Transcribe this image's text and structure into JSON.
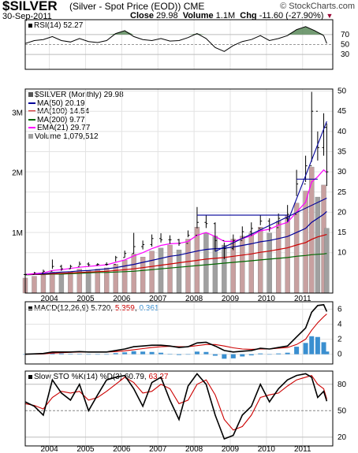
{
  "header": {
    "symbol": "$SILVER",
    "description": "(Silver - Spot Price (EOD))",
    "exchange": "CME",
    "brand": "© StockCharts.com",
    "date": "30-Sep-2011",
    "close_label": "Close",
    "close_value": "29.98",
    "volume_label": "Volume",
    "volume_value": "1.1M",
    "chg_label": "Chg",
    "chg_value": "-11.60 (-27.90%)",
    "chg_arrow": "▼"
  },
  "colors": {
    "price": "#000000",
    "ma50": "#000099",
    "ma100": "#cc0000",
    "ma200": "#006600",
    "ema21": "#ff00ff",
    "volume_up": "#c8a0a0",
    "volume_down": "#a0a0a0",
    "macd_hist": "#3a8fd0",
    "rsi_fill": "#5a8a5a"
  },
  "chart_data": [
    {
      "type": "line",
      "panel": "rsi",
      "label": "RSI(14) 52.27",
      "ylim": [
        0,
        100
      ],
      "y_ticks": [
        70,
        50,
        30
      ],
      "reference_lines": [
        70,
        30
      ],
      "x": [
        "2003-05",
        "2003-08",
        "2003-11",
        "2004-02",
        "2004-05",
        "2004-08",
        "2004-11",
        "2005-02",
        "2005-05",
        "2005-08",
        "2005-11",
        "2006-02",
        "2006-05",
        "2006-08",
        "2006-11",
        "2007-02",
        "2007-05",
        "2007-08",
        "2007-11",
        "2008-02",
        "2008-05",
        "2008-08",
        "2008-11",
        "2009-02",
        "2009-05",
        "2009-08",
        "2009-11",
        "2010-02",
        "2010-05",
        "2010-08",
        "2010-11",
        "2011-02",
        "2011-05",
        "2011-08",
        "2011-09"
      ],
      "values": [
        52,
        58,
        60,
        66,
        58,
        55,
        62,
        56,
        54,
        58,
        72,
        78,
        66,
        60,
        58,
        62,
        57,
        58,
        64,
        72,
        62,
        44,
        36,
        48,
        56,
        60,
        68,
        58,
        62,
        68,
        80,
        86,
        78,
        68,
        52
      ]
    },
    {
      "type": "candlestick",
      "panel": "price",
      "label": "$SILVER (Monthly) 29.98",
      "ylim": [
        0,
        50
      ],
      "y_ticks": [
        10,
        15,
        20,
        25,
        30,
        35,
        40,
        45,
        50
      ],
      "x_ticks": [
        "2004",
        "2005",
        "2006",
        "2007",
        "2008",
        "2009",
        "2010",
        "2011"
      ],
      "legend": [
        {
          "name": "MA(50) 20.19",
          "color": "#000099"
        },
        {
          "name": "MA(100) 14.54",
          "color": "#cc0000"
        },
        {
          "name": "MA(200) 9.77",
          "color": "#006600"
        },
        {
          "name": "EMA(21) 29.77",
          "color": "#ff00ff"
        },
        {
          "name": "Volume 1,079,512",
          "color": "#a0a0a0"
        }
      ],
      "x": [
        "2003-05",
        "2003-08",
        "2003-11",
        "2004-02",
        "2004-05",
        "2004-08",
        "2004-11",
        "2005-02",
        "2005-05",
        "2005-08",
        "2005-11",
        "2006-02",
        "2006-05",
        "2006-08",
        "2006-11",
        "2007-02",
        "2007-05",
        "2007-08",
        "2007-11",
        "2008-02",
        "2008-05",
        "2008-08",
        "2008-11",
        "2009-02",
        "2009-05",
        "2009-08",
        "2009-11",
        "2010-02",
        "2010-05",
        "2010-08",
        "2010-11",
        "2011-02",
        "2011-04",
        "2011-06",
        "2011-08",
        "2011-09"
      ],
      "close": [
        4.6,
        5.0,
        5.4,
        6.6,
        6.0,
        6.6,
        7.2,
        7.0,
        7.1,
        7.1,
        8.8,
        9.8,
        11.5,
        12.0,
        13.5,
        13.2,
        13.2,
        12.3,
        14.3,
        17.5,
        17.2,
        13.0,
        11.0,
        13.0,
        15.2,
        16.0,
        17.8,
        16.2,
        18.5,
        19.5,
        27.0,
        31.5,
        45.0,
        36.0,
        41.0,
        30.0
      ],
      "high": [
        4.8,
        5.2,
        5.8,
        8.3,
        7.0,
        7.0,
        7.8,
        7.6,
        7.4,
        7.6,
        9.2,
        10.5,
        14.9,
        13.0,
        14.5,
        14.8,
        14.3,
        13.4,
        15.5,
        21.3,
        19.3,
        17.5,
        12.5,
        14.5,
        16.5,
        17.5,
        19.3,
        18.5,
        19.7,
        21.8,
        30.5,
        34.0,
        49.8,
        40.0,
        44.5,
        42.0
      ],
      "low": [
        4.4,
        4.8,
        5.0,
        6.0,
        5.5,
        6.0,
        6.8,
        6.6,
        6.8,
        6.8,
        7.8,
        8.8,
        9.8,
        10.8,
        11.5,
        12.5,
        12.2,
        11.7,
        13.8,
        16.0,
        16.1,
        10.3,
        8.4,
        10.6,
        13.5,
        14.2,
        16.8,
        15.2,
        17.0,
        17.6,
        24.0,
        27.5,
        32.5,
        32.8,
        34.0,
        26.5
      ],
      "ma50": [
        4.6,
        4.7,
        4.8,
        5.0,
        5.2,
        5.3,
        5.5,
        5.6,
        5.8,
        6.0,
        6.3,
        6.7,
        7.1,
        7.6,
        8.1,
        8.6,
        9.1,
        9.4,
        9.9,
        10.4,
        10.8,
        11.0,
        11.1,
        11.4,
        11.8,
        12.2,
        12.7,
        13.0,
        13.5,
        14.0,
        15.0,
        16.0,
        17.5,
        18.5,
        19.5,
        20.2
      ],
      "ma100": [
        4.6,
        4.6,
        4.7,
        4.8,
        4.9,
        5.0,
        5.1,
        5.2,
        5.3,
        5.4,
        5.6,
        5.8,
        6.0,
        6.3,
        6.6,
        6.9,
        7.2,
        7.5,
        7.8,
        8.1,
        8.4,
        8.6,
        8.8,
        9.1,
        9.4,
        9.7,
        10.1,
        10.4,
        10.8,
        11.2,
        11.9,
        12.5,
        13.3,
        13.9,
        14.3,
        14.5
      ],
      "ma200": [
        4.5,
        4.6,
        4.6,
        4.7,
        4.7,
        4.8,
        4.9,
        5.0,
        5.1,
        5.1,
        5.2,
        5.3,
        5.4,
        5.6,
        5.8,
        6.0,
        6.2,
        6.4,
        6.6,
        6.8,
        7.0,
        7.2,
        7.4,
        7.6,
        7.8,
        8.0,
        8.2,
        8.4,
        8.6,
        8.8,
        9.1,
        9.3,
        9.5,
        9.6,
        9.7,
        9.8
      ],
      "ema21": [
        4.6,
        4.8,
        5.0,
        5.6,
        5.8,
        6.1,
        6.4,
        6.6,
        6.8,
        7.0,
        7.6,
        8.2,
        9.2,
        10.0,
        11.0,
        11.8,
        12.2,
        12.3,
        12.8,
        14.3,
        15.0,
        14.0,
        12.8,
        12.8,
        13.5,
        14.2,
        15.4,
        15.8,
        16.8,
        17.5,
        20.0,
        22.5,
        27.5,
        28.8,
        30.5,
        29.8
      ],
      "trendlines": [
        {
          "from": [
            "2008-02",
            19.3
          ],
          "to": [
            "2010-08",
            19.3
          ]
        },
        {
          "from": [
            "2010-11",
            28.2
          ],
          "to": [
            "2011-06",
            28.2
          ]
        },
        {
          "from": [
            "2008-08",
            10.3
          ],
          "to": [
            "2011-09",
            23.5
          ]
        },
        {
          "from": [
            "2010-08",
            17.6
          ],
          "to": [
            "2011-09",
            42.5
          ]
        }
      ]
    },
    {
      "type": "bar",
      "panel": "volume",
      "y_ticks": [
        "3M",
        "2M",
        "1M"
      ],
      "x": [
        "2003-05",
        "2003-08",
        "2003-11",
        "2004-02",
        "2004-05",
        "2004-08",
        "2004-11",
        "2005-02",
        "2005-05",
        "2005-08",
        "2005-11",
        "2006-02",
        "2006-05",
        "2006-08",
        "2006-11",
        "2007-02",
        "2007-05",
        "2007-08",
        "2007-11",
        "2008-02",
        "2008-05",
        "2008-08",
        "2008-11",
        "2009-02",
        "2009-05",
        "2009-08",
        "2009-11",
        "2010-02",
        "2010-05",
        "2010-08",
        "2010-11",
        "2011-02",
        "2011-04",
        "2011-06",
        "2011-08",
        "2011-09"
      ],
      "values": [
        0.25,
        0.28,
        0.3,
        0.35,
        0.33,
        0.35,
        0.4,
        0.38,
        0.4,
        0.42,
        0.48,
        0.55,
        0.65,
        0.6,
        0.7,
        0.75,
        0.8,
        0.72,
        0.9,
        1.1,
        1.0,
        0.95,
        0.8,
        0.9,
        0.95,
        1.0,
        1.1,
        1.0,
        1.2,
        1.3,
        1.5,
        1.7,
        2.1,
        1.6,
        1.8,
        1.08
      ],
      "ylim": [
        0,
        3.4
      ]
    },
    {
      "type": "line",
      "panel": "macd",
      "label_prefix": "MACD(12,26,9)",
      "label_values": [
        "5.720",
        "5.359",
        "0.361"
      ],
      "ylim": [
        -1.3,
        7
      ],
      "y_ticks": [
        6,
        4,
        2,
        0
      ],
      "x": [
        "2003-05",
        "2003-08",
        "2003-11",
        "2004-02",
        "2004-05",
        "2004-08",
        "2004-11",
        "2005-02",
        "2005-05",
        "2005-08",
        "2005-11",
        "2006-02",
        "2006-05",
        "2006-08",
        "2006-11",
        "2007-02",
        "2007-05",
        "2007-08",
        "2007-11",
        "2008-02",
        "2008-05",
        "2008-08",
        "2008-11",
        "2009-02",
        "2009-05",
        "2009-08",
        "2009-11",
        "2010-02",
        "2010-05",
        "2010-08",
        "2010-11",
        "2011-02",
        "2011-04",
        "2011-06",
        "2011-08",
        "2011-09"
      ],
      "macd": [
        0.0,
        0.05,
        0.1,
        0.3,
        0.3,
        0.3,
        0.35,
        0.3,
        0.3,
        0.3,
        0.5,
        0.7,
        1.0,
        1.1,
        1.2,
        1.2,
        1.1,
        0.9,
        1.0,
        1.5,
        1.6,
        1.1,
        0.5,
        0.3,
        0.4,
        0.5,
        0.8,
        0.7,
        0.9,
        1.1,
        2.3,
        3.5,
        5.6,
        6.5,
        6.6,
        5.7
      ],
      "signal": [
        0.0,
        0.02,
        0.05,
        0.15,
        0.2,
        0.25,
        0.3,
        0.3,
        0.3,
        0.3,
        0.35,
        0.45,
        0.6,
        0.75,
        0.9,
        1.0,
        1.05,
        1.0,
        1.0,
        1.15,
        1.3,
        1.3,
        1.1,
        0.85,
        0.7,
        0.65,
        0.7,
        0.7,
        0.8,
        0.9,
        1.3,
        2.0,
        3.2,
        4.2,
        5.0,
        5.36
      ],
      "histogram": [
        0.0,
        0.03,
        0.05,
        0.15,
        0.1,
        0.05,
        0.05,
        0.0,
        0.0,
        0.0,
        0.15,
        0.25,
        0.4,
        0.35,
        0.3,
        0.2,
        0.05,
        -0.1,
        0.0,
        0.35,
        0.3,
        -0.2,
        -0.6,
        -0.55,
        -0.3,
        -0.15,
        0.1,
        0.0,
        0.1,
        0.2,
        1.0,
        1.5,
        2.4,
        2.3,
        1.6,
        0.36
      ]
    },
    {
      "type": "line",
      "panel": "stochastic",
      "label_prefix": "Slow STO %K(14) %D(3)",
      "label_values": [
        "60.79",
        "63.27"
      ],
      "ylim": [
        10,
        95
      ],
      "y_ticks": [
        80,
        50,
        20
      ],
      "reference_lines": [
        80,
        50
      ],
      "x": [
        "2003-05",
        "2003-08",
        "2003-11",
        "2004-02",
        "2004-05",
        "2004-08",
        "2004-11",
        "2005-02",
        "2005-05",
        "2005-08",
        "2005-11",
        "2006-02",
        "2006-05",
        "2006-08",
        "2006-11",
        "2007-02",
        "2007-05",
        "2007-08",
        "2007-11",
        "2008-02",
        "2008-05",
        "2008-08",
        "2008-11",
        "2009-02",
        "2009-05",
        "2009-08",
        "2009-11",
        "2010-02",
        "2010-05",
        "2010-08",
        "2010-11",
        "2011-02",
        "2011-04",
        "2011-06",
        "2011-08",
        "2011-09"
      ],
      "k": [
        60,
        55,
        45,
        85,
        70,
        62,
        80,
        50,
        68,
        85,
        88,
        90,
        75,
        55,
        82,
        88,
        62,
        40,
        78,
        92,
        80,
        45,
        18,
        22,
        45,
        55,
        80,
        60,
        75,
        85,
        90,
        92,
        88,
        65,
        72,
        60.79
      ],
      "d": [
        58,
        56,
        52,
        65,
        72,
        70,
        72,
        62,
        65,
        72,
        80,
        88,
        82,
        70,
        72,
        80,
        75,
        58,
        62,
        80,
        85,
        68,
        40,
        28,
        32,
        45,
        65,
        68,
        70,
        78,
        85,
        88,
        90,
        80,
        75,
        63.27
      ]
    }
  ]
}
